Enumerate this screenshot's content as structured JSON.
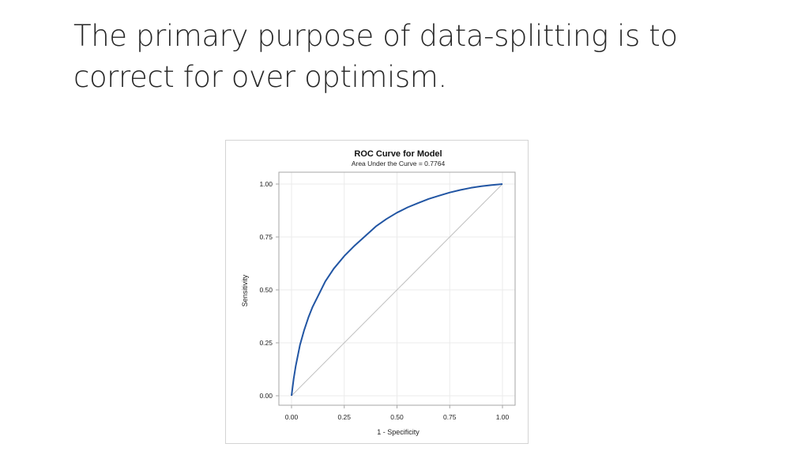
{
  "slide": {
    "title_line1": "The primary purpose of data-splitting is to",
    "title_line2": "correct for over optimism."
  },
  "chart_data": {
    "type": "line",
    "title": "ROC Curve for Model",
    "subtitle": "Area Under the Curve = 0.7764",
    "xlabel": "1 - Specificity",
    "ylabel": "Sensitivity",
    "xlim": [
      0,
      1
    ],
    "ylim": [
      0,
      1
    ],
    "xticks": [
      "0.00",
      "0.25",
      "0.50",
      "0.75",
      "1.00"
    ],
    "yticks": [
      "0.00",
      "0.25",
      "0.50",
      "0.75",
      "1.00"
    ],
    "grid": true,
    "series": [
      {
        "color": "#2155a3",
        "x": [
          0.0,
          0.01,
          0.02,
          0.04,
          0.06,
          0.08,
          0.1,
          0.13,
          0.16,
          0.2,
          0.25,
          0.3,
          0.35,
          0.4,
          0.45,
          0.5,
          0.55,
          0.6,
          0.65,
          0.7,
          0.75,
          0.8,
          0.85,
          0.9,
          0.95,
          1.0
        ],
        "y": [
          0.0,
          0.08,
          0.14,
          0.24,
          0.31,
          0.37,
          0.42,
          0.48,
          0.54,
          0.6,
          0.66,
          0.71,
          0.755,
          0.8,
          0.835,
          0.865,
          0.89,
          0.91,
          0.93,
          0.945,
          0.96,
          0.972,
          0.982,
          0.99,
          0.995,
          1.0
        ]
      },
      {
        "color": "#bfbfbf",
        "x": [
          0,
          1
        ],
        "y": [
          0,
          1
        ]
      }
    ]
  }
}
